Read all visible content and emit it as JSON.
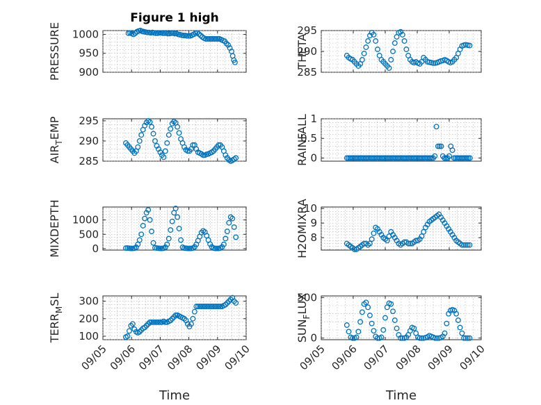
{
  "figure": {
    "title": "Figure 1 high",
    "marker_color": "#0072BD"
  },
  "chart_data": [
    {
      "type": "scatter",
      "title": "Figure 1 high",
      "ylabel": "PRESSURE",
      "ylabel_sub": "",
      "ylim": [
        900,
        1010
      ],
      "yticks": [
        900,
        950,
        1000
      ],
      "ytick_labels": [
        "900",
        "950",
        "1000"
      ],
      "xlabel": "",
      "xtick_labels": [],
      "x": [
        5.89,
        5.95,
        6.01,
        6.07,
        6.13,
        6.19,
        6.25,
        6.31,
        6.37,
        6.43,
        6.49,
        6.55,
        6.61,
        6.67,
        6.73,
        6.79,
        6.85,
        6.91,
        6.97,
        7.03,
        7.09,
        7.15,
        7.21,
        7.27,
        7.33,
        7.39,
        7.45,
        7.51,
        7.57,
        7.63,
        7.69,
        7.75,
        7.81,
        7.87,
        7.93,
        7.99,
        8.05,
        8.11,
        8.17,
        8.23,
        8.29,
        8.35,
        8.41,
        8.47,
        8.53,
        8.59,
        8.65,
        8.71,
        8.77,
        8.83,
        8.89,
        8.95,
        9.01,
        9.07,
        9.13,
        9.19,
        9.25,
        9.31,
        9.37,
        9.43,
        9.49,
        9.53,
        9.57,
        9.61
      ],
      "y": [
        1003,
        1004,
        1002,
        1000,
        1003,
        1007,
        1009,
        1010,
        1008,
        1007,
        1006,
        1005,
        1005,
        1004,
        1005,
        1004,
        1003,
        1003,
        1004,
        1004,
        1003,
        1003,
        1003,
        1002,
        1002,
        1003,
        1003,
        1002,
        1002,
        1000,
        999,
        998,
        997,
        997,
        996,
        996,
        996,
        998,
        1000,
        1003,
        1004,
        1001,
        997,
        993,
        990,
        988,
        988,
        988,
        988,
        988,
        988,
        988,
        988,
        988,
        986,
        984,
        982,
        976,
        972,
        964,
        955,
        943,
        932,
        926
      ]
    },
    {
      "type": "scatter",
      "ylabel": "THETA",
      "ylabel_sub": "",
      "ylim": [
        285,
        295
      ],
      "yticks": [
        285,
        290,
        295
      ],
      "ytick_labels": [
        "285",
        "290",
        "295"
      ],
      "xlabel": "",
      "xtick_labels": [],
      "x": [
        5.8,
        5.86,
        5.92,
        5.98,
        6.04,
        6.1,
        6.16,
        6.22,
        6.28,
        6.34,
        6.4,
        6.46,
        6.52,
        6.58,
        6.64,
        6.7,
        6.76,
        6.82,
        6.88,
        6.94,
        7.0,
        7.06,
        7.12,
        7.18,
        7.24,
        7.3,
        7.36,
        7.42,
        7.48,
        7.54,
        7.6,
        7.66,
        7.72,
        7.78,
        7.84,
        7.9,
        7.96,
        8.02,
        8.08,
        8.14,
        8.2,
        8.26,
        8.32,
        8.38,
        8.44,
        8.5,
        8.56,
        8.62,
        8.68,
        8.74,
        8.8,
        8.86,
        8.92,
        8.98,
        9.04,
        9.1,
        9.16,
        9.22,
        9.28,
        9.34,
        9.4,
        9.46,
        9.52,
        9.58,
        9.64
      ],
      "y": [
        289,
        288.5,
        288.2,
        288,
        287.5,
        287,
        286.5,
        287,
        288,
        289.5,
        291,
        292.5,
        293.8,
        294.5,
        294,
        292.5,
        290.5,
        289,
        288,
        287.5,
        287,
        286.5,
        286,
        288,
        290,
        292,
        293.5,
        294.5,
        294.7,
        294,
        292.5,
        290.5,
        289,
        288,
        287.5,
        287.3,
        287.5,
        287.2,
        287,
        287.5,
        288.5,
        288,
        287.5,
        287.4,
        287.3,
        287.2,
        287.2,
        287.3,
        287.5,
        287.7,
        287.8,
        288,
        287.8,
        287.5,
        287.3,
        287.5,
        288,
        288.5,
        289.5,
        290.5,
        291.3,
        291.5,
        291.6,
        291.5,
        291.4
      ]
    },
    {
      "type": "scatter",
      "ylabel": "AIR",
      "ylabel_sub": "T",
      "ylabel_tail": "EMP",
      "ylim": [
        285,
        295.5
      ],
      "yticks": [
        285,
        290,
        295
      ],
      "ytick_labels": [
        "285",
        "290",
        "295"
      ],
      "xlabel": "",
      "xtick_labels": [],
      "x": [
        5.8,
        5.86,
        5.92,
        5.98,
        6.04,
        6.1,
        6.16,
        6.22,
        6.28,
        6.34,
        6.4,
        6.46,
        6.52,
        6.58,
        6.64,
        6.7,
        6.76,
        6.82,
        6.88,
        6.94,
        7.0,
        7.06,
        7.12,
        7.18,
        7.24,
        7.3,
        7.36,
        7.42,
        7.48,
        7.54,
        7.6,
        7.66,
        7.72,
        7.78,
        7.84,
        7.9,
        7.96,
        8.02,
        8.08,
        8.14,
        8.2,
        8.26,
        8.32,
        8.38,
        8.44,
        8.5,
        8.56,
        8.62,
        8.68,
        8.74,
        8.8,
        8.86,
        8.92,
        8.98,
        9.04,
        9.1,
        9.16,
        9.22,
        9.28,
        9.34,
        9.4,
        9.46,
        9.52,
        9.58,
        9.64
      ],
      "y": [
        289.5,
        289,
        288.5,
        288,
        287.5,
        287,
        287.5,
        288.5,
        290,
        291.5,
        292.8,
        293.8,
        294.6,
        295,
        294.7,
        293.5,
        291.8,
        290,
        288.8,
        288,
        287.2,
        286.5,
        286,
        287.5,
        289.5,
        291.5,
        293,
        294.3,
        294.8,
        294.5,
        293.5,
        292,
        290.5,
        289.5,
        288.5,
        287.8,
        287.5,
        287.5,
        288,
        289,
        289,
        288,
        287.2,
        287,
        286.8,
        286.5,
        286.5,
        286.7,
        286.8,
        287,
        287.2,
        287.5,
        288,
        288.5,
        289,
        289,
        288.5,
        287.5,
        286.5,
        285.8,
        285.3,
        285,
        285.2,
        285.5,
        285.8
      ]
    },
    {
      "type": "scatter",
      "ylabel": "RAINFALL",
      "ylabel_sub": "",
      "ylim": [
        -0.08,
        1
      ],
      "yticks": [
        0,
        0.5,
        1
      ],
      "ytick_labels": [
        "0",
        "0.5",
        "1"
      ],
      "xlabel": "",
      "xtick_labels": [],
      "x": [
        5.8,
        5.85,
        5.9,
        5.95,
        6.0,
        6.05,
        6.1,
        6.15,
        6.2,
        6.25,
        6.3,
        6.35,
        6.4,
        6.45,
        6.5,
        6.55,
        6.6,
        6.65,
        6.7,
        6.75,
        6.8,
        6.85,
        6.9,
        6.95,
        7.0,
        7.05,
        7.1,
        7.15,
        7.2,
        7.25,
        7.3,
        7.35,
        7.4,
        7.45,
        7.5,
        7.55,
        7.6,
        7.65,
        7.7,
        7.75,
        7.8,
        7.85,
        7.9,
        7.95,
        8.0,
        8.05,
        8.1,
        8.15,
        8.2,
        8.25,
        8.3,
        8.35,
        8.4,
        8.45,
        8.5,
        8.55,
        8.6,
        8.65,
        8.7,
        8.75,
        8.8,
        8.85,
        8.9,
        8.95,
        9.0,
        9.05,
        9.1,
        9.15,
        9.2,
        9.25,
        9.3,
        9.35,
        9.4,
        9.45,
        9.5,
        9.55,
        9.6,
        9.65
      ],
      "y": [
        0,
        0,
        0,
        0,
        0,
        0,
        0,
        0,
        0,
        0,
        0,
        0,
        0,
        0,
        0,
        0,
        0,
        0,
        0,
        0,
        0,
        0,
        0,
        0,
        0,
        0,
        0,
        0,
        0,
        0,
        0,
        0,
        0,
        0,
        0,
        0,
        0,
        0,
        0,
        0,
        0,
        0,
        0,
        0,
        0,
        0,
        0,
        0,
        0,
        0,
        0,
        0,
        0,
        0,
        0,
        0.05,
        0.8,
        0.3,
        0.3,
        0.3,
        0.05,
        0,
        0,
        0,
        0.05,
        0.3,
        0.2,
        0,
        0,
        0,
        0,
        0,
        0,
        0,
        0,
        0,
        0,
        0
      ]
    },
    {
      "type": "scatter",
      "ylabel": "MIXDEPTH",
      "ylabel_sub": "",
      "ylim": [
        -50,
        1450
      ],
      "yticks": [
        0,
        500,
        1000
      ],
      "ytick_labels": [
        "0",
        "500",
        "1000"
      ],
      "xlabel": "",
      "xtick_labels": [],
      "x": [
        5.8,
        5.86,
        5.92,
        5.98,
        6.04,
        6.1,
        6.16,
        6.22,
        6.28,
        6.34,
        6.4,
        6.46,
        6.52,
        6.58,
        6.64,
        6.7,
        6.76,
        6.82,
        6.88,
        6.94,
        7.0,
        7.06,
        7.12,
        7.18,
        7.24,
        7.3,
        7.36,
        7.42,
        7.48,
        7.54,
        7.6,
        7.66,
        7.72,
        7.78,
        7.84,
        7.9,
        7.96,
        8.02,
        8.08,
        8.14,
        8.2,
        8.26,
        8.32,
        8.38,
        8.44,
        8.5,
        8.56,
        8.62,
        8.68,
        8.74,
        8.8,
        8.86,
        8.92,
        8.98,
        9.04,
        9.1,
        9.16,
        9.22,
        9.28,
        9.34,
        9.4,
        9.46,
        9.52,
        9.58,
        9.64
      ],
      "y": [
        20,
        20,
        15,
        10,
        10,
        15,
        50,
        150,
        300,
        500,
        800,
        1050,
        1250,
        1350,
        1000,
        600,
        200,
        30,
        20,
        15,
        10,
        10,
        15,
        50,
        150,
        350,
        650,
        950,
        1250,
        1400,
        1100,
        700,
        300,
        50,
        20,
        15,
        10,
        10,
        10,
        20,
        60,
        150,
        280,
        420,
        560,
        620,
        580,
        450,
        300,
        160,
        60,
        20,
        10,
        10,
        10,
        20,
        60,
        150,
        350,
        600,
        900,
        1100,
        1050,
        750,
        400
      ]
    },
    {
      "type": "scatter",
      "ylabel": "H2OMIXRA",
      "ylabel_sub": "",
      "ylim": [
        7.15,
        10.1
      ],
      "yticks": [
        8,
        9,
        10
      ],
      "ytick_labels": [
        "8",
        "9",
        "10"
      ],
      "xlabel": "",
      "xtick_labels": [],
      "x": [
        5.8,
        5.86,
        5.92,
        5.98,
        6.04,
        6.1,
        6.16,
        6.22,
        6.28,
        6.34,
        6.4,
        6.46,
        6.52,
        6.58,
        6.64,
        6.7,
        6.76,
        6.82,
        6.88,
        6.94,
        7.0,
        7.06,
        7.12,
        7.18,
        7.24,
        7.3,
        7.36,
        7.42,
        7.48,
        7.54,
        7.6,
        7.66,
        7.72,
        7.78,
        7.84,
        7.9,
        7.96,
        8.02,
        8.08,
        8.14,
        8.2,
        8.26,
        8.32,
        8.38,
        8.44,
        8.5,
        8.56,
        8.62,
        8.68,
        8.74,
        8.8,
        8.86,
        8.92,
        8.98,
        9.04,
        9.1,
        9.16,
        9.22,
        9.28,
        9.34,
        9.4,
        9.46,
        9.52,
        9.58,
        9.64
      ],
      "y": [
        7.6,
        7.5,
        7.4,
        7.3,
        7.2,
        7.2,
        7.3,
        7.4,
        7.5,
        7.6,
        7.6,
        7.5,
        7.6,
        7.9,
        8.3,
        8.7,
        8.6,
        8.4,
        8.2,
        8.0,
        7.9,
        7.8,
        8.1,
        8.4,
        8.2,
        8.0,
        7.8,
        7.6,
        7.5,
        7.6,
        7.7,
        7.7,
        7.6,
        7.6,
        7.6,
        7.7,
        7.8,
        7.8,
        7.9,
        8.1,
        8.4,
        8.7,
        8.9,
        9.1,
        9.2,
        9.3,
        9.4,
        9.5,
        9.6,
        9.4,
        9.2,
        9.0,
        8.8,
        8.6,
        8.4,
        8.2,
        8.0,
        7.8,
        7.7,
        7.6,
        7.5,
        7.5,
        7.5,
        7.5,
        7.5
      ]
    },
    {
      "type": "scatter",
      "ylabel": "TERR",
      "ylabel_sub": "M",
      "ylabel_tail": "SL",
      "ylim": [
        80,
        330
      ],
      "yticks": [
        100,
        200,
        300
      ],
      "ytick_labels": [
        "100",
        "200",
        "300"
      ],
      "xlabel": "Time",
      "xtick_labels": [
        "09/05",
        "09/06",
        "09/07",
        "09/08",
        "09/09",
        "09/10"
      ],
      "x": [
        5.8,
        5.86,
        5.92,
        5.98,
        6.04,
        6.1,
        6.16,
        6.22,
        6.28,
        6.34,
        6.4,
        6.46,
        6.52,
        6.58,
        6.64,
        6.7,
        6.76,
        6.82,
        6.88,
        6.94,
        7.0,
        7.06,
        7.12,
        7.18,
        7.24,
        7.3,
        7.36,
        7.42,
        7.48,
        7.54,
        7.6,
        7.66,
        7.72,
        7.78,
        7.84,
        7.9,
        7.96,
        8.02,
        8.08,
        8.14,
        8.2,
        8.26,
        8.32,
        8.38,
        8.44,
        8.5,
        8.56,
        8.62,
        8.68,
        8.74,
        8.8,
        8.86,
        8.92,
        8.98,
        9.04,
        9.1,
        9.16,
        9.22,
        9.28,
        9.34,
        9.4,
        9.46,
        9.52,
        9.58,
        9.64
      ],
      "y": [
        95,
        100,
        130,
        160,
        170,
        140,
        125,
        120,
        125,
        135,
        145,
        150,
        160,
        170,
        180,
        180,
        180,
        180,
        180,
        180,
        180,
        180,
        185,
        180,
        180,
        185,
        190,
        200,
        210,
        220,
        220,
        215,
        210,
        205,
        200,
        190,
        170,
        155,
        170,
        200,
        240,
        270,
        270,
        270,
        270,
        270,
        270,
        270,
        270,
        270,
        270,
        270,
        270,
        270,
        270,
        270,
        270,
        275,
        280,
        290,
        300,
        310,
        320,
        300,
        290
      ]
    },
    {
      "type": "scatter",
      "ylabel": "SUN",
      "ylabel_sub": "F",
      "ylabel_tail": "LUX",
      "ylim": [
        -20,
        520
      ],
      "yticks": [
        0,
        500
      ],
      "ytick_labels": [
        "0",
        "500"
      ],
      "xlabel": "Time",
      "xtick_labels": [
        "09/05",
        "09/06",
        "09/07",
        "09/08",
        "09/09",
        "09/10"
      ],
      "x": [
        5.8,
        5.86,
        5.92,
        5.98,
        6.04,
        6.1,
        6.16,
        6.22,
        6.28,
        6.34,
        6.4,
        6.46,
        6.52,
        6.58,
        6.64,
        6.7,
        6.76,
        6.82,
        6.88,
        6.94,
        7.0,
        7.06,
        7.12,
        7.18,
        7.24,
        7.3,
        7.36,
        7.42,
        7.48,
        7.54,
        7.6,
        7.66,
        7.72,
        7.78,
        7.84,
        7.9,
        7.96,
        8.02,
        8.08,
        8.14,
        8.2,
        8.26,
        8.32,
        8.38,
        8.44,
        8.5,
        8.56,
        8.62,
        8.68,
        8.74,
        8.8,
        8.86,
        8.92,
        8.98,
        9.04,
        9.1,
        9.16,
        9.22,
        9.28,
        9.34,
        9.4,
        9.46,
        9.52,
        9.58,
        9.64
      ],
      "y": [
        160,
        80,
        10,
        0,
        0,
        10,
        80,
        200,
        320,
        420,
        440,
        380,
        280,
        180,
        90,
        20,
        0,
        0,
        10,
        100,
        250,
        380,
        430,
        420,
        330,
        220,
        120,
        40,
        0,
        0,
        0,
        10,
        40,
        90,
        130,
        120,
        60,
        10,
        0,
        0,
        0,
        5,
        15,
        30,
        20,
        10,
        0,
        0,
        0,
        5,
        20,
        60,
        180,
        300,
        340,
        350,
        340,
        300,
        220,
        130,
        60,
        0,
        0,
        0,
        0
      ]
    }
  ]
}
